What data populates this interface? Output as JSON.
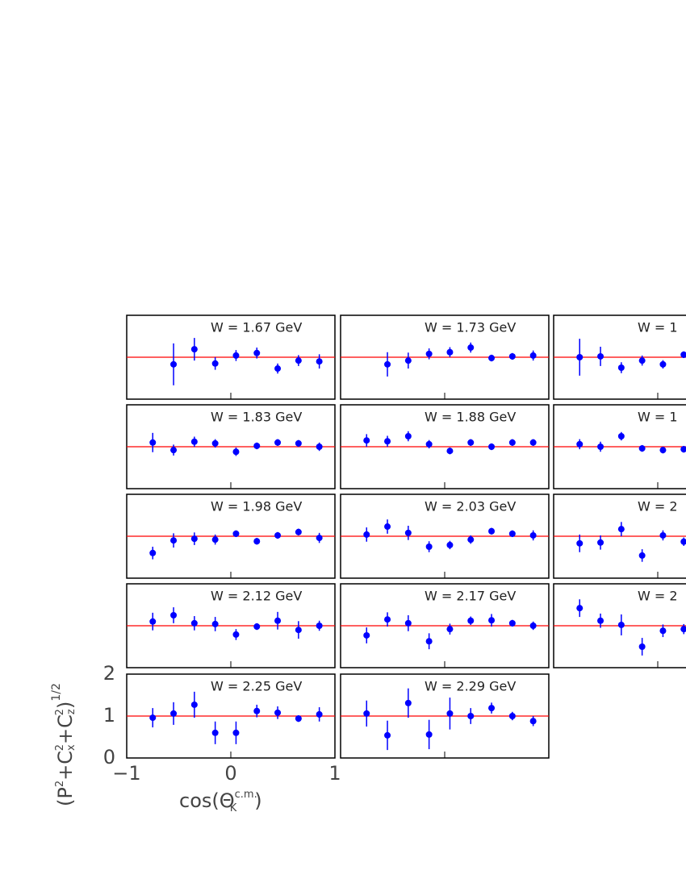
{
  "chart_data": {
    "type": "scatter",
    "x_label_parts": [
      "cos(Θ",
      "c.m.",
      "K",
      ")"
    ],
    "y_label_parts": [
      "(P",
      "2",
      "+C",
      "x",
      "2",
      "+C",
      "z",
      "2",
      ")",
      "1/2"
    ],
    "x": [
      -0.75,
      -0.55,
      -0.35,
      -0.15,
      0.05,
      0.25,
      0.45,
      0.65,
      0.85
    ],
    "xlim": [
      -1,
      1
    ],
    "ylim": [
      0,
      2
    ],
    "xticks": [
      {
        "value": -1,
        "label": "−1"
      },
      0,
      1
    ],
    "yticks": [
      0,
      1,
      2
    ],
    "reference_line": 1,
    "reference_color": "#ff0000",
    "color": "#0000ff",
    "series": [
      {
        "name": "W = 1.67 GeV",
        "values": [
          null,
          0.83,
          1.19,
          0.85,
          1.04,
          1.1,
          0.73,
          0.92,
          0.9
        ],
        "errors": [
          null,
          0.5,
          0.27,
          0.15,
          0.13,
          0.13,
          0.12,
          0.13,
          0.17
        ]
      },
      {
        "name": "W = 1.73 GeV",
        "values": [
          null,
          0.83,
          0.92,
          1.08,
          1.12,
          1.23,
          0.98,
          1.02,
          1.04
        ],
        "errors": [
          null,
          0.29,
          0.19,
          0.13,
          0.12,
          0.12,
          0.08,
          0.08,
          0.12
        ]
      },
      {
        "name": "W = 1",
        "values": [
          1.0,
          1.02,
          0.75,
          0.92,
          0.83,
          1.06,
          null,
          null,
          null
        ],
        "errors": [
          0.44,
          0.23,
          0.13,
          0.12,
          0.1,
          0.08,
          null,
          null,
          null
        ]
      },
      {
        "name": "W = 1.83 GeV",
        "values": [
          1.1,
          0.92,
          1.12,
          1.08,
          0.88,
          1.02,
          1.1,
          1.08,
          1.0
        ],
        "errors": [
          0.23,
          0.13,
          0.12,
          0.1,
          0.1,
          0.08,
          0.08,
          0.08,
          0.1
        ]
      },
      {
        "name": "W = 1.88 GeV",
        "values": [
          1.15,
          1.13,
          1.25,
          1.06,
          0.9,
          1.1,
          1.0,
          1.1,
          1.1
        ],
        "errors": [
          0.15,
          0.13,
          0.12,
          0.1,
          0.08,
          0.08,
          0.08,
          0.08,
          0.08
        ]
      },
      {
        "name": "W = 1",
        "values": [
          1.06,
          1.0,
          1.25,
          0.96,
          0.92,
          0.94,
          null,
          null,
          null
        ],
        "errors": [
          0.12,
          0.12,
          0.1,
          0.08,
          0.08,
          0.08,
          null,
          null,
          null
        ]
      },
      {
        "name": "W = 1.98 GeV",
        "values": [
          0.6,
          0.9,
          0.94,
          0.92,
          1.06,
          0.88,
          1.02,
          1.1,
          0.96
        ],
        "errors": [
          0.15,
          0.17,
          0.15,
          0.12,
          0.08,
          0.08,
          0.08,
          0.08,
          0.12
        ]
      },
      {
        "name": "W = 2.03 GeV",
        "values": [
          1.04,
          1.23,
          1.08,
          0.75,
          0.79,
          0.92,
          1.12,
          1.06,
          1.02
        ],
        "errors": [
          0.17,
          0.17,
          0.17,
          0.13,
          0.1,
          0.1,
          0.08,
          0.08,
          0.12
        ]
      },
      {
        "name": "W = 2",
        "values": [
          0.83,
          0.85,
          1.17,
          0.54,
          1.02,
          0.87,
          null,
          null,
          null
        ],
        "errors": [
          0.21,
          0.17,
          0.17,
          0.15,
          0.12,
          0.1,
          null,
          null,
          null
        ]
      },
      {
        "name": "W = 2.12 GeV",
        "values": [
          1.1,
          1.25,
          1.06,
          1.04,
          0.79,
          0.98,
          1.12,
          0.9,
          1.0
        ],
        "errors": [
          0.21,
          0.19,
          0.17,
          0.17,
          0.13,
          0.08,
          0.21,
          0.21,
          0.12
        ]
      },
      {
        "name": "W = 2.17 GeV",
        "values": [
          0.77,
          1.15,
          1.06,
          0.63,
          0.92,
          1.12,
          1.13,
          1.06,
          1.0
        ],
        "errors": [
          0.19,
          0.17,
          0.19,
          0.19,
          0.13,
          0.1,
          0.15,
          0.08,
          0.1
        ]
      },
      {
        "name": "W = 2",
        "values": [
          1.42,
          1.12,
          1.02,
          0.5,
          0.88,
          0.92,
          null,
          null,
          null
        ],
        "errors": [
          0.21,
          0.17,
          0.25,
          0.21,
          0.15,
          0.12,
          null,
          null,
          null
        ]
      },
      {
        "name": "W = 2.25 GeV",
        "values": [
          0.96,
          1.06,
          1.27,
          0.6,
          0.6,
          1.12,
          1.08,
          0.94,
          1.04
        ],
        "errors": [
          0.23,
          0.27,
          0.31,
          0.27,
          0.27,
          0.15,
          0.15,
          0.08,
          0.17
        ]
      },
      {
        "name": "W = 2.29 GeV",
        "values": [
          1.06,
          0.54,
          1.31,
          0.56,
          1.06,
          1.0,
          1.19,
          1.0,
          0.88
        ],
        "errors": [
          0.31,
          0.35,
          0.35,
          0.35,
          0.38,
          0.19,
          0.13,
          0.1,
          0.12
        ]
      }
    ]
  }
}
